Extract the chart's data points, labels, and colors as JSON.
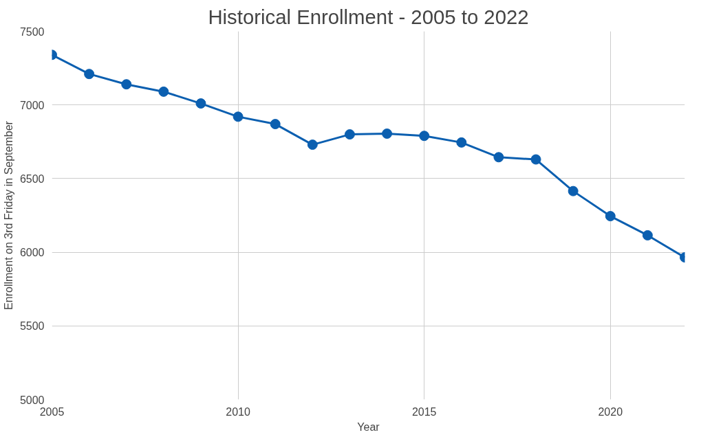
{
  "chart_data": {
    "type": "line",
    "title": "Historical Enrollment - 2005 to 2022",
    "xlabel": "Year",
    "ylabel": "Enrollment on 3rd Friday in September",
    "x": [
      2005,
      2006,
      2007,
      2008,
      2009,
      2010,
      2011,
      2012,
      2013,
      2014,
      2015,
      2016,
      2017,
      2018,
      2019,
      2020,
      2021,
      2022
    ],
    "series": [
      {
        "color": "#0b5fb0",
        "values": [
          7340,
          7210,
          7140,
          7090,
          7010,
          6920,
          6870,
          6730,
          6800,
          6805,
          6790,
          6745,
          6645,
          6630,
          6415,
          6245,
          6115,
          5965
        ]
      }
    ],
    "xlim": [
      2005,
      2022
    ],
    "xticks": [
      2005,
      2010,
      2015,
      2020
    ],
    "ylim": [
      5000,
      7500
    ],
    "yticks": [
      5000,
      5500,
      6000,
      6500,
      7000,
      7500
    ],
    "grid": true,
    "marker": "circle",
    "line_style": "solid"
  }
}
